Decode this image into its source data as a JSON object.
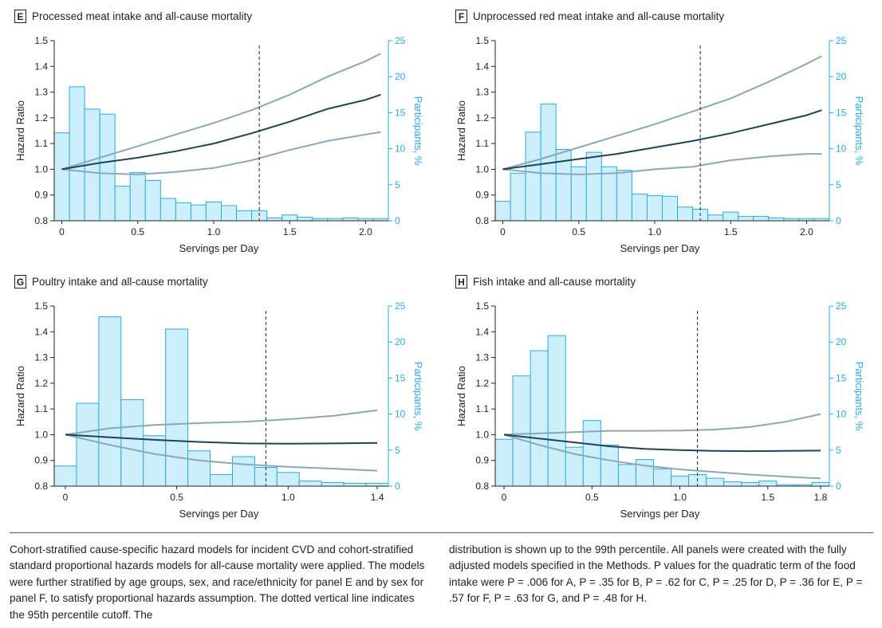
{
  "colors": {
    "bar_fill": "#cdeefb",
    "bar_stroke": "#29abe2",
    "hr_line": "#1f4456",
    "ci_line": "#8aa9b6",
    "right_axis": "#29abe2",
    "cutoff_line": "#222222"
  },
  "chart_data": [
    {
      "panel_letter": "E",
      "title": "Processed meat intake and all-cause mortality",
      "type": "bar+line",
      "xlabel": "Servings per Day",
      "ylabel_left": "Hazard Ratio",
      "ylabel_right": "Participants, %",
      "xlim": [
        -0.05,
        2.15
      ],
      "ylim_left": [
        0.8,
        1.5
      ],
      "ylim_right": [
        0,
        25
      ],
      "xticks": [
        0,
        0.5,
        1.0,
        1.5,
        2.0
      ],
      "xtick_labels": [
        "0",
        "0.5",
        "1.0",
        "1.5",
        "2.0"
      ],
      "yticks_left": [
        0.8,
        0.9,
        1.0,
        1.1,
        1.2,
        1.3,
        1.4,
        1.5
      ],
      "ytick_labels_left": [
        "0.8",
        "0.9",
        "1.0",
        "1.1",
        "1.2",
        "1.3",
        "1.4",
        "1.5"
      ],
      "yticks_right": [
        0,
        5,
        10,
        15,
        20,
        25
      ],
      "ytick_labels_right": [
        "0",
        "5",
        "10",
        "15",
        "20",
        "25"
      ],
      "bar_width": 0.1,
      "bars": [
        {
          "x": -0.05,
          "pct": 12.2
        },
        {
          "x": 0.05,
          "pct": 18.6
        },
        {
          "x": 0.15,
          "pct": 15.5
        },
        {
          "x": 0.25,
          "pct": 14.8
        },
        {
          "x": 0.35,
          "pct": 4.8
        },
        {
          "x": 0.45,
          "pct": 6.7
        },
        {
          "x": 0.55,
          "pct": 5.6
        },
        {
          "x": 0.65,
          "pct": 3.1
        },
        {
          "x": 0.75,
          "pct": 2.5
        },
        {
          "x": 0.85,
          "pct": 2.2
        },
        {
          "x": 0.95,
          "pct": 2.6
        },
        {
          "x": 1.05,
          "pct": 2.1
        },
        {
          "x": 1.15,
          "pct": 1.4
        },
        {
          "x": 1.25,
          "pct": 1.4
        },
        {
          "x": 1.35,
          "pct": 0.4
        },
        {
          "x": 1.45,
          "pct": 0.8
        },
        {
          "x": 1.55,
          "pct": 0.5
        },
        {
          "x": 1.65,
          "pct": 0.3
        },
        {
          "x": 1.75,
          "pct": 0.3
        },
        {
          "x": 1.85,
          "pct": 0.4
        },
        {
          "x": 1.95,
          "pct": 0.3
        },
        {
          "x": 2.05,
          "pct": 0.3
        }
      ],
      "hr": [
        [
          0,
          1.0
        ],
        [
          0.25,
          1.025
        ],
        [
          0.5,
          1.045
        ],
        [
          0.75,
          1.07
        ],
        [
          1.0,
          1.1
        ],
        [
          1.25,
          1.14
        ],
        [
          1.5,
          1.185
        ],
        [
          1.75,
          1.235
        ],
        [
          2.0,
          1.27
        ],
        [
          2.1,
          1.29
        ]
      ],
      "ci_upper": [
        [
          0,
          1.0
        ],
        [
          0.25,
          1.045
        ],
        [
          0.5,
          1.09
        ],
        [
          0.75,
          1.135
        ],
        [
          1.0,
          1.18
        ],
        [
          1.25,
          1.23
        ],
        [
          1.5,
          1.29
        ],
        [
          1.75,
          1.36
        ],
        [
          2.0,
          1.42
        ],
        [
          2.1,
          1.45
        ]
      ],
      "ci_lower": [
        [
          0,
          1.0
        ],
        [
          0.25,
          0.985
        ],
        [
          0.5,
          0.98
        ],
        [
          0.75,
          0.99
        ],
        [
          1.0,
          1.005
        ],
        [
          1.25,
          1.035
        ],
        [
          1.5,
          1.075
        ],
        [
          1.75,
          1.11
        ],
        [
          2.0,
          1.135
        ],
        [
          2.1,
          1.145
        ]
      ],
      "cutoff_x": 1.3
    },
    {
      "panel_letter": "F",
      "title": "Unprocessed red meat intake and all-cause mortality",
      "type": "bar+line",
      "xlabel": "Servings per Day",
      "ylabel_left": "Hazard Ratio",
      "ylabel_right": "Participants, %",
      "xlim": [
        -0.05,
        2.15
      ],
      "ylim_left": [
        0.8,
        1.5
      ],
      "ylim_right": [
        0,
        25
      ],
      "xticks": [
        0,
        0.5,
        1.0,
        1.5,
        2.0
      ],
      "xtick_labels": [
        "0",
        "0.5",
        "1.0",
        "1.5",
        "2.0"
      ],
      "yticks_left": [
        0.8,
        0.9,
        1.0,
        1.1,
        1.2,
        1.3,
        1.4,
        1.5
      ],
      "ytick_labels_left": [
        "0.8",
        "0.9",
        "1.0",
        "1.1",
        "1.2",
        "1.3",
        "1.4",
        "1.5"
      ],
      "yticks_right": [
        0,
        5,
        10,
        15,
        20,
        25
      ],
      "ytick_labels_right": [
        "0",
        "5",
        "10",
        "15",
        "20",
        "25"
      ],
      "bar_width": 0.1,
      "bars": [
        {
          "x": -0.05,
          "pct": 2.7
        },
        {
          "x": 0.05,
          "pct": 6.6
        },
        {
          "x": 0.15,
          "pct": 12.3
        },
        {
          "x": 0.25,
          "pct": 16.2
        },
        {
          "x": 0.35,
          "pct": 9.9
        },
        {
          "x": 0.45,
          "pct": 7.5
        },
        {
          "x": 0.55,
          "pct": 9.5
        },
        {
          "x": 0.65,
          "pct": 7.5
        },
        {
          "x": 0.75,
          "pct": 7.0
        },
        {
          "x": 0.85,
          "pct": 3.7
        },
        {
          "x": 0.95,
          "pct": 3.5
        },
        {
          "x": 1.05,
          "pct": 3.4
        },
        {
          "x": 1.15,
          "pct": 1.9
        },
        {
          "x": 1.25,
          "pct": 1.6
        },
        {
          "x": 1.35,
          "pct": 0.8
        },
        {
          "x": 1.45,
          "pct": 1.2
        },
        {
          "x": 1.55,
          "pct": 0.6
        },
        {
          "x": 1.65,
          "pct": 0.6
        },
        {
          "x": 1.75,
          "pct": 0.4
        },
        {
          "x": 1.85,
          "pct": 0.3
        },
        {
          "x": 1.95,
          "pct": 0.3
        },
        {
          "x": 2.05,
          "pct": 0.3
        }
      ],
      "hr": [
        [
          0,
          1.0
        ],
        [
          0.25,
          1.02
        ],
        [
          0.5,
          1.04
        ],
        [
          0.75,
          1.06
        ],
        [
          1.0,
          1.085
        ],
        [
          1.25,
          1.11
        ],
        [
          1.5,
          1.14
        ],
        [
          1.75,
          1.175
        ],
        [
          2.0,
          1.21
        ],
        [
          2.1,
          1.23
        ]
      ],
      "ci_upper": [
        [
          0,
          1.0
        ],
        [
          0.25,
          1.04
        ],
        [
          0.5,
          1.085
        ],
        [
          0.75,
          1.13
        ],
        [
          1.0,
          1.175
        ],
        [
          1.25,
          1.225
        ],
        [
          1.5,
          1.275
        ],
        [
          1.75,
          1.34
        ],
        [
          2.0,
          1.41
        ],
        [
          2.1,
          1.44
        ]
      ],
      "ci_lower": [
        [
          0,
          1.0
        ],
        [
          0.25,
          0.985
        ],
        [
          0.5,
          0.98
        ],
        [
          0.75,
          0.985
        ],
        [
          1.0,
          1.0
        ],
        [
          1.25,
          1.01
        ],
        [
          1.5,
          1.035
        ],
        [
          1.75,
          1.05
        ],
        [
          2.0,
          1.06
        ],
        [
          2.1,
          1.06
        ]
      ],
      "cutoff_x": 1.3
    },
    {
      "panel_letter": "G",
      "title": "Poultry intake and all-cause mortality",
      "type": "bar+line",
      "xlabel": "Servings per Day",
      "ylabel_left": "Hazard Ratio",
      "ylabel_right": "Participants, %",
      "xlim": [
        -0.05,
        1.45
      ],
      "ylim_left": [
        0.8,
        1.5
      ],
      "ylim_right": [
        0,
        25
      ],
      "xticks": [
        0,
        0.5,
        1.0,
        1.4
      ],
      "xtick_labels": [
        "0",
        "0.5",
        "1.0",
        "1.4"
      ],
      "yticks_left": [
        0.8,
        0.9,
        1.0,
        1.1,
        1.2,
        1.3,
        1.4,
        1.5
      ],
      "ytick_labels_left": [
        "0.8",
        "0.9",
        "1.0",
        "1.1",
        "1.2",
        "1.3",
        "1.4",
        "1.5"
      ],
      "yticks_right": [
        0,
        5,
        10,
        15,
        20,
        25
      ],
      "ytick_labels_right": [
        "0",
        "5",
        "10",
        "15",
        "20",
        "25"
      ],
      "bar_width": 0.1,
      "bars": [
        {
          "x": -0.05,
          "pct": 2.8
        },
        {
          "x": 0.05,
          "pct": 11.5
        },
        {
          "x": 0.15,
          "pct": 23.5
        },
        {
          "x": 0.25,
          "pct": 12.0
        },
        {
          "x": 0.35,
          "pct": 7.0
        },
        {
          "x": 0.45,
          "pct": 21.8
        },
        {
          "x": 0.55,
          "pct": 4.9
        },
        {
          "x": 0.65,
          "pct": 1.6
        },
        {
          "x": 0.75,
          "pct": 4.1
        },
        {
          "x": 0.85,
          "pct": 2.6
        },
        {
          "x": 0.95,
          "pct": 1.9
        },
        {
          "x": 1.05,
          "pct": 0.7
        },
        {
          "x": 1.15,
          "pct": 0.5
        },
        {
          "x": 1.25,
          "pct": 0.4
        },
        {
          "x": 1.35,
          "pct": 0.4
        }
      ],
      "hr": [
        [
          0,
          1.0
        ],
        [
          0.2,
          0.99
        ],
        [
          0.4,
          0.98
        ],
        [
          0.6,
          0.972
        ],
        [
          0.8,
          0.966
        ],
        [
          1.0,
          0.965
        ],
        [
          1.2,
          0.966
        ],
        [
          1.4,
          0.968
        ]
      ],
      "ci_upper": [
        [
          0,
          1.0
        ],
        [
          0.2,
          1.025
        ],
        [
          0.4,
          1.038
        ],
        [
          0.6,
          1.045
        ],
        [
          0.8,
          1.05
        ],
        [
          1.0,
          1.06
        ],
        [
          1.2,
          1.073
        ],
        [
          1.4,
          1.095
        ]
      ],
      "ci_lower": [
        [
          0,
          1.0
        ],
        [
          0.2,
          0.96
        ],
        [
          0.4,
          0.925
        ],
        [
          0.6,
          0.9
        ],
        [
          0.8,
          0.885
        ],
        [
          1.0,
          0.875
        ],
        [
          1.2,
          0.868
        ],
        [
          1.4,
          0.86
        ]
      ],
      "cutoff_x": 0.9
    },
    {
      "panel_letter": "H",
      "title": "Fish intake and all-cause mortality",
      "type": "bar+line",
      "xlabel": "Servings per Day",
      "ylabel_left": "Hazard Ratio",
      "ylabel_right": "Participants, %",
      "xlim": [
        -0.05,
        1.85
      ],
      "ylim_left": [
        0.8,
        1.5
      ],
      "ylim_right": [
        0,
        25
      ],
      "xticks": [
        0,
        0.5,
        1.0,
        1.5,
        1.8
      ],
      "xtick_labels": [
        "0",
        "0.5",
        "1.0",
        "1.5",
        "1.8"
      ],
      "yticks_left": [
        0.8,
        0.9,
        1.0,
        1.1,
        1.2,
        1.3,
        1.4,
        1.5
      ],
      "ytick_labels_left": [
        "0.8",
        "0.9",
        "1.0",
        "1.1",
        "1.2",
        "1.3",
        "1.4",
        "1.5"
      ],
      "yticks_right": [
        0,
        5,
        10,
        15,
        20,
        25
      ],
      "ytick_labels_right": [
        "0",
        "5",
        "10",
        "15",
        "20",
        "25"
      ],
      "bar_width": 0.1,
      "bars": [
        {
          "x": -0.05,
          "pct": 6.5
        },
        {
          "x": 0.05,
          "pct": 15.3
        },
        {
          "x": 0.15,
          "pct": 18.8
        },
        {
          "x": 0.25,
          "pct": 20.9
        },
        {
          "x": 0.35,
          "pct": 5.4
        },
        {
          "x": 0.45,
          "pct": 9.1
        },
        {
          "x": 0.55,
          "pct": 5.7
        },
        {
          "x": 0.65,
          "pct": 3.0
        },
        {
          "x": 0.75,
          "pct": 3.7
        },
        {
          "x": 0.85,
          "pct": 2.4
        },
        {
          "x": 0.95,
          "pct": 1.4
        },
        {
          "x": 1.05,
          "pct": 1.6
        },
        {
          "x": 1.15,
          "pct": 1.1
        },
        {
          "x": 1.25,
          "pct": 0.6
        },
        {
          "x": 1.35,
          "pct": 0.5
        },
        {
          "x": 1.45,
          "pct": 0.7
        },
        {
          "x": 1.55,
          "pct": 0.2
        },
        {
          "x": 1.65,
          "pct": 0.2
        },
        {
          "x": 1.75,
          "pct": 0.5
        }
      ],
      "hr": [
        [
          0,
          1.0
        ],
        [
          0.2,
          0.985
        ],
        [
          0.4,
          0.97
        ],
        [
          0.6,
          0.955
        ],
        [
          0.8,
          0.945
        ],
        [
          1.0,
          0.94
        ],
        [
          1.2,
          0.937
        ],
        [
          1.4,
          0.936
        ],
        [
          1.6,
          0.937
        ],
        [
          1.8,
          0.938
        ]
      ],
      "ci_upper": [
        [
          0,
          1.0
        ],
        [
          0.2,
          1.005
        ],
        [
          0.4,
          1.01
        ],
        [
          0.6,
          1.015
        ],
        [
          0.8,
          1.015
        ],
        [
          1.0,
          1.016
        ],
        [
          1.2,
          1.02
        ],
        [
          1.4,
          1.03
        ],
        [
          1.6,
          1.05
        ],
        [
          1.8,
          1.08
        ]
      ],
      "ci_lower": [
        [
          0,
          1.0
        ],
        [
          0.2,
          0.96
        ],
        [
          0.4,
          0.925
        ],
        [
          0.6,
          0.9
        ],
        [
          0.8,
          0.88
        ],
        [
          1.0,
          0.865
        ],
        [
          1.2,
          0.855
        ],
        [
          1.4,
          0.845
        ],
        [
          1.6,
          0.837
        ],
        [
          1.8,
          0.83
        ]
      ],
      "cutoff_x": 1.1
    }
  ],
  "caption": {
    "left": "Cohort-stratified cause-specific hazard models for incident CVD and cohort-stratified standard proportional hazards models for all-cause mortality were applied. The models were further stratified by age groups, sex, and race/ethnicity for panel E and by sex for panel F, to satisfy proportional hazards assumption. The dotted vertical line indicates the 95th percentile cutoff. The",
    "right": "distribution is shown up to the 99th percentile. All panels were created with the fully adjusted models specified in the Methods. P values for the quadratic term of the food intake were P = .006 for A, P = .35 for B, P = .62 for C, P = .25 for D, P = .36 for E, P = .57 for F, P = .63 for G, and P = .48 for H."
  }
}
